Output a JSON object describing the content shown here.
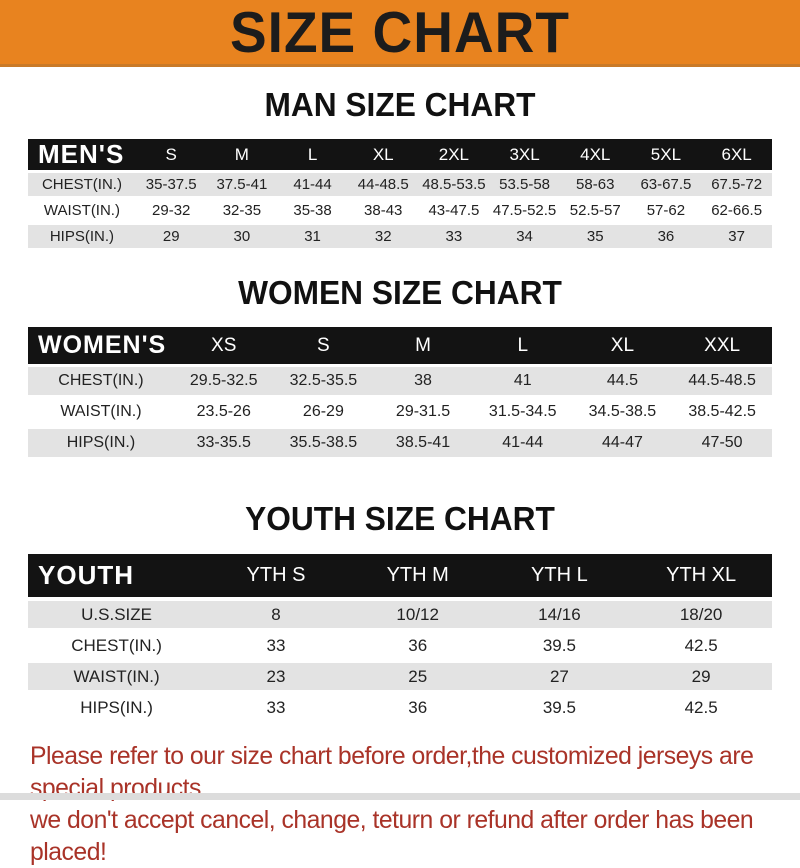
{
  "header": {
    "title": "SIZE CHART"
  },
  "sections": [
    {
      "title": "MAN SIZE CHART",
      "table_label": "MEN'S",
      "columns": [
        "S",
        "M",
        "L",
        "XL",
        "2XL",
        "3XL",
        "4XL",
        "5XL",
        "6XL"
      ],
      "rows": [
        {
          "label": "CHEST(IN.)",
          "values": [
            "35-37.5",
            "37.5-41",
            "41-44",
            "44-48.5",
            "48.5-53.5",
            "53.5-58",
            "58-63",
            "63-67.5",
            "67.5-72"
          ]
        },
        {
          "label": "WAIST(IN.)",
          "values": [
            "29-32",
            "32-35",
            "35-38",
            "38-43",
            "43-47.5",
            "47.5-52.5",
            "52.5-57",
            "57-62",
            "62-66.5"
          ]
        },
        {
          "label": "HIPS(IN.)",
          "values": [
            "29",
            "30",
            "31",
            "32",
            "33",
            "34",
            "35",
            "36",
            "37"
          ]
        }
      ]
    },
    {
      "title": "WOMEN SIZE CHART",
      "table_label": "WOMEN'S",
      "columns": [
        "XS",
        "S",
        "M",
        "L",
        "XL",
        "XXL"
      ],
      "rows": [
        {
          "label": "CHEST(IN.)",
          "values": [
            "29.5-32.5",
            "32.5-35.5",
            "38",
            "41",
            "44.5",
            "44.5-48.5"
          ]
        },
        {
          "label": "WAIST(IN.)",
          "values": [
            "23.5-26",
            "26-29",
            "29-31.5",
            "31.5-34.5",
            "34.5-38.5",
            "38.5-42.5"
          ]
        },
        {
          "label": "HIPS(IN.)",
          "values": [
            "33-35.5",
            "35.5-38.5",
            "38.5-41",
            "41-44",
            "44-47",
            "47-50"
          ]
        }
      ]
    },
    {
      "title": "YOUTH SIZE CHART",
      "table_label": "YOUTH",
      "columns": [
        "YTH S",
        "YTH M",
        "YTH L",
        "YTH XL"
      ],
      "rows": [
        {
          "label": "U.S.SIZE",
          "values": [
            "8",
            "10/12",
            "14/16",
            "18/20"
          ]
        },
        {
          "label": "CHEST(IN.)",
          "values": [
            "33",
            "36",
            "39.5",
            "42.5"
          ]
        },
        {
          "label": "WAIST(IN.)",
          "values": [
            "23",
            "25",
            "27",
            "29"
          ]
        },
        {
          "label": "HIPS(IN.)",
          "values": [
            "33",
            "36",
            "39.5",
            "42.5"
          ]
        }
      ]
    }
  ],
  "footer": {
    "line1": "Please refer to our size chart before order,the customized jerseys are special products,",
    "line2": "we don't accept cancel, change, teturn or refund after order has been placed!"
  },
  "colors": {
    "banner_orange": "#E8831F",
    "table_header_black": "#131313",
    "row_gray": "#E3E3E3",
    "footer_red": "#A93328"
  }
}
